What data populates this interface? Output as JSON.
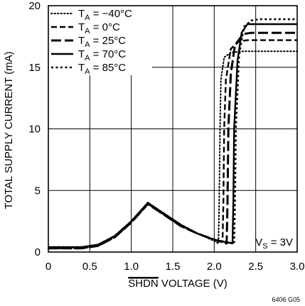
{
  "chart_data": {
    "type": "line",
    "title": "",
    "xlabel": "SHDN VOLTAGE (V)",
    "xlabel_overline": "SHDN",
    "xlabel_rest": " VOLTAGE (V)",
    "ylabel": "TOTAL SUPPLY CURRENT (mA)",
    "xlim": [
      0,
      3.0
    ],
    "ylim": [
      0,
      20
    ],
    "xticks": [
      0,
      0.5,
      1.0,
      1.5,
      2.0,
      2.5,
      3.0
    ],
    "xtick_labels": [
      "0",
      "0.5",
      "1.0",
      "1.5",
      "2.0",
      "2.5",
      "3.0"
    ],
    "yticks": [
      0,
      5,
      10,
      15,
      20
    ],
    "ytick_labels": [
      "0",
      "5",
      "10",
      "15",
      "20"
    ],
    "grid": true,
    "legend_placement": "top-left",
    "annotation": {
      "pre": "V",
      "sub": "S",
      "post": " = 3V"
    },
    "figure_id": "6406 G05",
    "series": [
      {
        "name": "TA = −40°C",
        "name_pre": "T",
        "name_sub": "A",
        "name_post": " = −40°C",
        "style": "dotted",
        "points": [
          [
            0,
            0.3
          ],
          [
            0.4,
            0.3
          ],
          [
            0.6,
            0.5
          ],
          [
            0.8,
            1.2
          ],
          [
            1.0,
            2.4
          ],
          [
            1.2,
            3.9
          ],
          [
            1.4,
            3.0
          ],
          [
            1.6,
            2.1
          ],
          [
            1.8,
            1.5
          ],
          [
            2.0,
            0.9
          ],
          [
            2.05,
            0.7
          ],
          [
            2.06,
            4
          ],
          [
            2.07,
            10
          ],
          [
            2.08,
            14
          ],
          [
            2.12,
            15.8
          ],
          [
            2.2,
            16.2
          ],
          [
            2.35,
            16.3
          ],
          [
            3.0,
            16.3
          ]
        ]
      },
      {
        "name": "TA = 0°C",
        "name_pre": "T",
        "name_sub": "A",
        "name_post": " = 0°C",
        "style": "dashed",
        "points": [
          [
            0,
            0.3
          ],
          [
            0.4,
            0.3
          ],
          [
            0.6,
            0.5
          ],
          [
            0.8,
            1.2
          ],
          [
            1.0,
            2.4
          ],
          [
            1.2,
            3.9
          ],
          [
            1.4,
            3.0
          ],
          [
            1.6,
            2.1
          ],
          [
            1.8,
            1.5
          ],
          [
            2.0,
            1.0
          ],
          [
            2.1,
            0.8
          ],
          [
            2.11,
            4
          ],
          [
            2.12,
            10
          ],
          [
            2.14,
            14
          ],
          [
            2.2,
            16.5
          ],
          [
            2.3,
            17.1
          ],
          [
            2.4,
            17.2
          ],
          [
            3.0,
            17.2
          ]
        ]
      },
      {
        "name": "TA = 25°C",
        "name_pre": "T",
        "name_sub": "A",
        "name_post": " = 25°C",
        "style": "longdash",
        "points": [
          [
            0,
            0.3
          ],
          [
            0.4,
            0.3
          ],
          [
            0.6,
            0.5
          ],
          [
            0.8,
            1.2
          ],
          [
            1.0,
            2.4
          ],
          [
            1.2,
            3.9
          ],
          [
            1.4,
            3.0
          ],
          [
            1.6,
            2.1
          ],
          [
            1.8,
            1.5
          ],
          [
            2.0,
            1.0
          ],
          [
            2.15,
            0.7
          ],
          [
            2.16,
            4
          ],
          [
            2.17,
            10
          ],
          [
            2.2,
            14.5
          ],
          [
            2.25,
            16.8
          ],
          [
            2.35,
            17.7
          ],
          [
            2.45,
            17.8
          ],
          [
            3.0,
            17.8
          ]
        ]
      },
      {
        "name": "TA = 70°C",
        "name_pre": "T",
        "name_sub": "A",
        "name_post": " = 70°C",
        "style": "solid",
        "points": [
          [
            0,
            0.4
          ],
          [
            0.4,
            0.4
          ],
          [
            0.6,
            0.6
          ],
          [
            0.8,
            1.3
          ],
          [
            1.0,
            2.5
          ],
          [
            1.2,
            4.0
          ],
          [
            1.4,
            3.1
          ],
          [
            1.6,
            2.2
          ],
          [
            1.8,
            1.5
          ],
          [
            2.0,
            1.0
          ],
          [
            2.22,
            0.7
          ],
          [
            2.23,
            4
          ],
          [
            2.24,
            10
          ],
          [
            2.28,
            15.5
          ],
          [
            2.33,
            17.8
          ],
          [
            2.4,
            18.5
          ],
          [
            2.5,
            18.5
          ],
          [
            3.0,
            18.5
          ]
        ]
      },
      {
        "name": "TA = 85°C",
        "name_pre": "T",
        "name_sub": "A",
        "name_post": " = 85°C",
        "style": "dotted-heavy",
        "points": [
          [
            0,
            0.4
          ],
          [
            0.4,
            0.4
          ],
          [
            0.6,
            0.6
          ],
          [
            0.8,
            1.3
          ],
          [
            1.0,
            2.5
          ],
          [
            1.2,
            4.0
          ],
          [
            1.4,
            3.1
          ],
          [
            1.6,
            2.2
          ],
          [
            1.8,
            1.5
          ],
          [
            2.0,
            1.0
          ],
          [
            2.24,
            0.7
          ],
          [
            2.25,
            4
          ],
          [
            2.26,
            10
          ],
          [
            2.3,
            16
          ],
          [
            2.36,
            18.3
          ],
          [
            2.45,
            18.8
          ],
          [
            2.55,
            18.9
          ],
          [
            3.0,
            18.9
          ]
        ]
      }
    ]
  }
}
